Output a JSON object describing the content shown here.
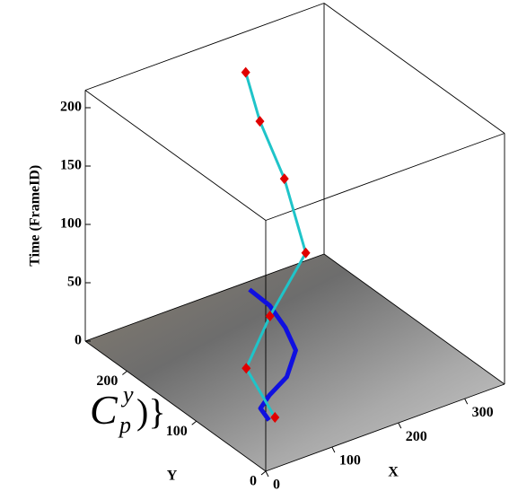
{
  "chart_data": {
    "type": "line3d",
    "xlabel": "X",
    "ylabel": "Y",
    "zlabel": "Time (FrameID)",
    "xlim": [
      0,
      360
    ],
    "ylim": [
      0,
      260
    ],
    "zlim": [
      0,
      215
    ],
    "xticks": [
      0,
      100,
      200,
      300
    ],
    "yticks": [
      0,
      100,
      200
    ],
    "zticks": [
      0,
      50,
      100,
      150,
      200
    ],
    "trajectory": {
      "color": "#1fc4c9",
      "marker_color": "#e00000",
      "x": [
        84,
        70,
        90,
        165,
        185,
        190,
        200
      ],
      "y": [
        67,
        95,
        80,
        100,
        150,
        190,
        220
      ],
      "z": [
        0,
        33,
        80,
        110,
        148,
        179,
        206
      ]
    },
    "ground_track": {
      "color": "#1010e0",
      "x": [
        236,
        234,
        219,
        198,
        152,
        109,
        82,
        74
      ],
      "y": [
        249,
        218,
        181,
        146,
        115,
        99,
        86,
        66
      ]
    },
    "annotation": {
      "base": "C",
      "sup": "y",
      "sub": "p",
      "tail": ")}"
    }
  }
}
